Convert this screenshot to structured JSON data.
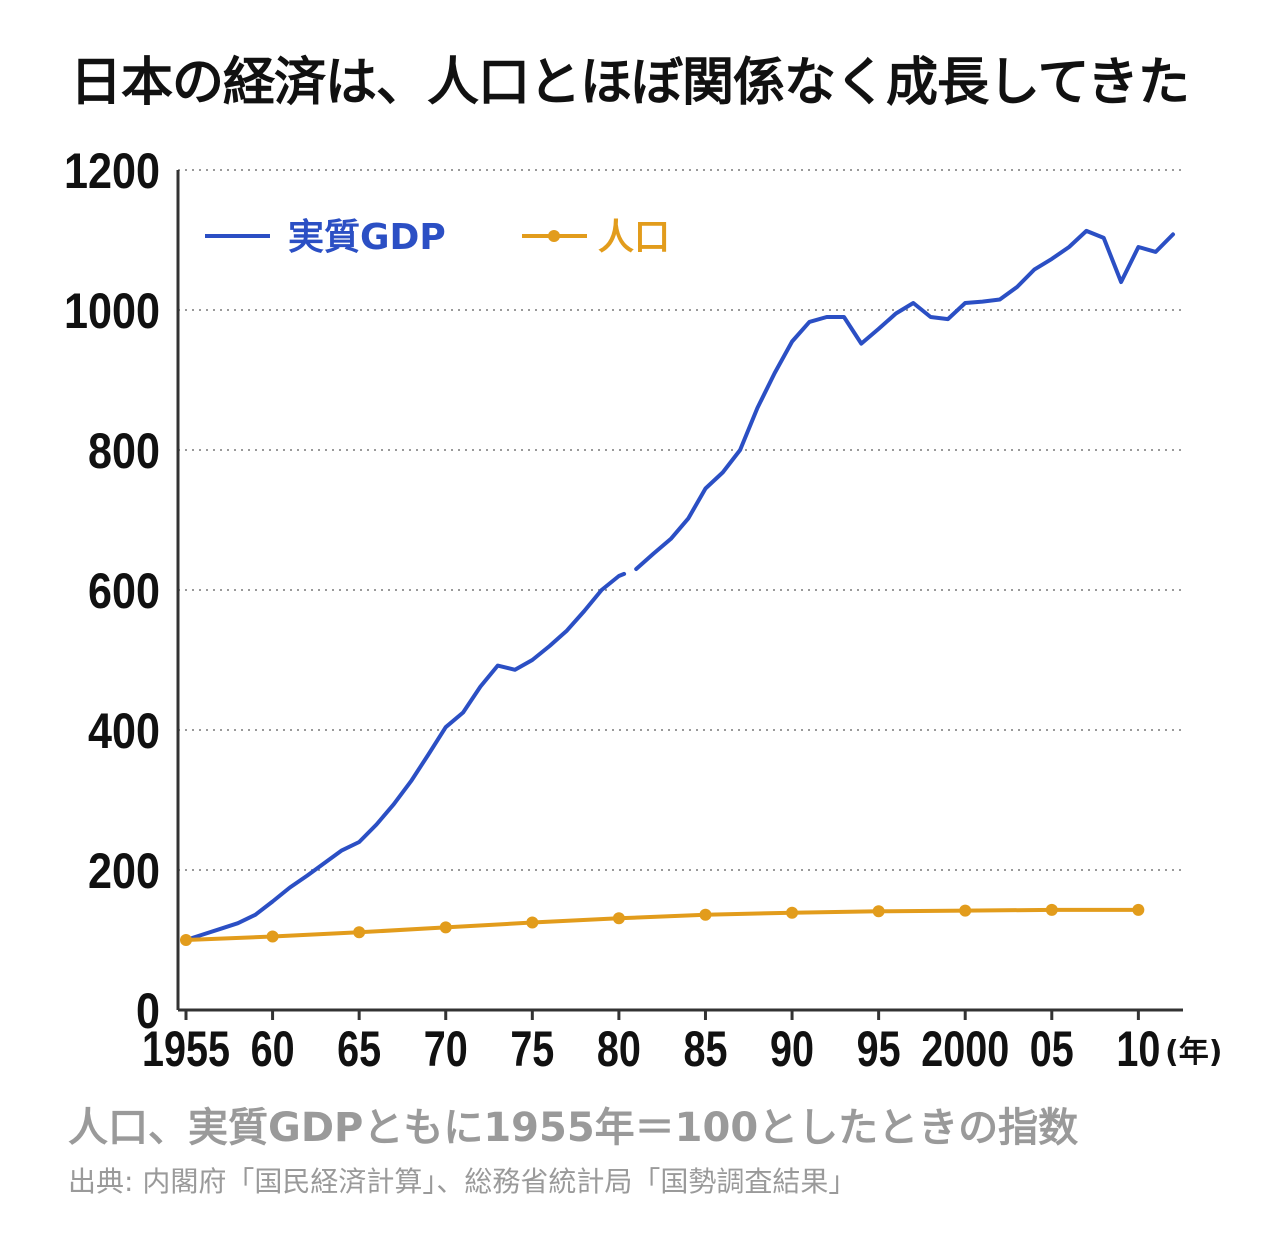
{
  "title": "日本の経済は、人口とほぼ関係なく成長してきた",
  "note": "人口、実質GDPともに1955年＝100としたときの指数",
  "source": "出典: 内閣府「国民経済計算」、総務省統計局「国勢調査結果」",
  "chart_data": {
    "type": "line",
    "ylim": [
      0,
      1200
    ],
    "yticks": [
      "1200",
      "1000",
      "800",
      "600",
      "400",
      "200",
      "0"
    ],
    "ytick_values": [
      1200,
      1000,
      800,
      600,
      400,
      200,
      0
    ],
    "xlim": [
      1955,
      2012
    ],
    "xticks": [
      "1955",
      "60",
      "65",
      "70",
      "75",
      "80",
      "85",
      "90",
      "95",
      "2000",
      "05",
      "10"
    ],
    "xtick_values": [
      1955,
      1960,
      1965,
      1970,
      1975,
      1980,
      1985,
      1990,
      1995,
      2000,
      2005,
      2010
    ],
    "xunit": "(年)",
    "grid": true,
    "legend_position": "top-left",
    "colors": {
      "gdp": "#2b4fc4",
      "population": "#e29c1c",
      "grid": "#9a9a9a",
      "axis": "#333333"
    },
    "series": [
      {
        "name": "実質GDP",
        "style": "line",
        "segments": [
          {
            "x": [
              1955,
              1956,
              1957,
              1958,
              1959,
              1960,
              1961,
              1962,
              1963,
              1964,
              1965,
              1966,
              1967,
              1968,
              1969,
              1970,
              1971,
              1972,
              1973,
              1974,
              1975,
              1976,
              1977,
              1978,
              1979,
              1980,
              1980.3
            ],
            "y": [
              100,
              108,
              116,
              124,
              136,
              155,
              175,
              192,
              210,
              228,
              240,
              265,
              294,
              327,
              365,
              404,
              425,
              462,
              492,
              486,
              500,
              520,
              542,
              570,
              600,
              620,
              623
            ]
          },
          {
            "x": [
              1981,
              1982,
              1983,
              1984,
              1985,
              1986,
              1987,
              1988,
              1989,
              1990,
              1991,
              1992,
              1993,
              1994,
              1995,
              1996,
              1997,
              1998,
              1999,
              2000,
              2001,
              2002,
              2003,
              2004,
              2005,
              2006,
              2007,
              2008,
              2009,
              2010,
              2011,
              2012
            ],
            "y": [
              630,
              652,
              673,
              702,
              745,
              768,
              800,
              860,
              910,
              955,
              983,
              990,
              990,
              952,
              973,
              995,
              1010,
              990,
              987,
              1010,
              1012,
              1015,
              1033,
              1058,
              1073,
              1090,
              1113,
              1103,
              1040,
              1090,
              1083,
              1108
            ]
          }
        ]
      },
      {
        "name": "人口",
        "style": "line-markers",
        "x": [
          1955,
          1960,
          1965,
          1970,
          1975,
          1980,
          1985,
          1990,
          1995,
          2000,
          2005,
          2010
        ],
        "y": [
          100,
          105,
          111,
          118,
          125,
          131,
          136,
          139,
          141,
          142,
          143,
          143
        ]
      }
    ]
  }
}
